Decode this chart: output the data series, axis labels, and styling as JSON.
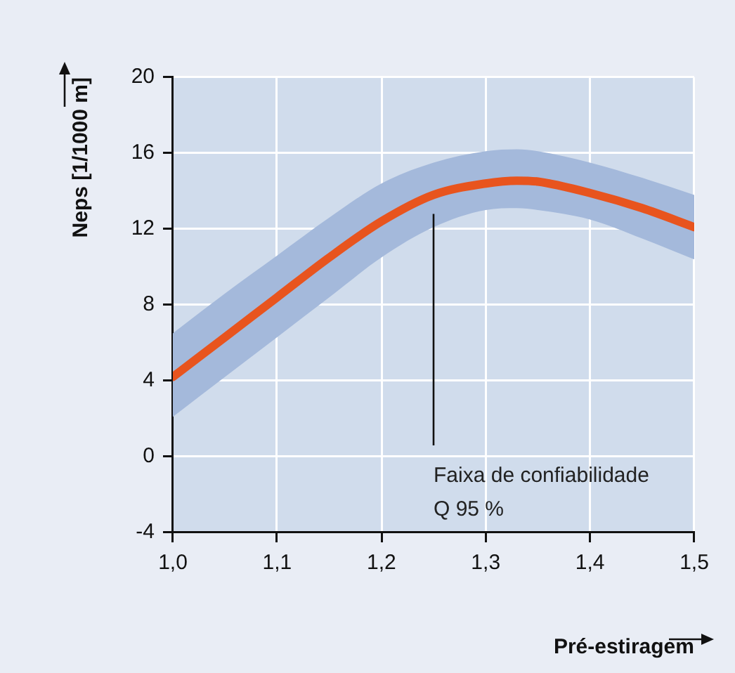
{
  "chart_data": {
    "type": "line",
    "xlabel": "Pré-estiragem",
    "ylabel": "Neps [1/1000 m]",
    "x": [
      1.0,
      1.05,
      1.1,
      1.15,
      1.2,
      1.25,
      1.3,
      1.33,
      1.35,
      1.4,
      1.45,
      1.5
    ],
    "series": [
      {
        "color": "#e8541e",
        "values": [
          4.2,
          6.3,
          8.4,
          10.5,
          12.4,
          13.8,
          14.4,
          14.55,
          14.5,
          13.9,
          13.1,
          12.1
        ],
        "lower": [
          2.1,
          4.2,
          6.3,
          8.4,
          10.5,
          12.1,
          13.0,
          13.1,
          13.0,
          12.5,
          11.5,
          10.4
        ],
        "upper": [
          6.5,
          8.6,
          10.6,
          12.6,
          14.4,
          15.5,
          16.1,
          16.2,
          16.1,
          15.5,
          14.7,
          13.8
        ]
      }
    ],
    "xlim": [
      1.0,
      1.5
    ],
    "xticks": [
      {
        "value": 1.0,
        "label": "1,0"
      },
      {
        "value": 1.1,
        "label": "1,1"
      },
      {
        "value": 1.2,
        "label": "1,2"
      },
      {
        "value": 1.3,
        "label": "1,3"
      },
      {
        "value": 1.4,
        "label": "1,4"
      },
      {
        "value": 1.5,
        "label": "1,5"
      }
    ],
    "ylim": [
      -4,
      20
    ],
    "yticks": [
      -4,
      0,
      4,
      8,
      12,
      16,
      20
    ],
    "grid": true,
    "annotations": [
      "Faixa de confiabilidade\nQ 95 %"
    ]
  }
}
